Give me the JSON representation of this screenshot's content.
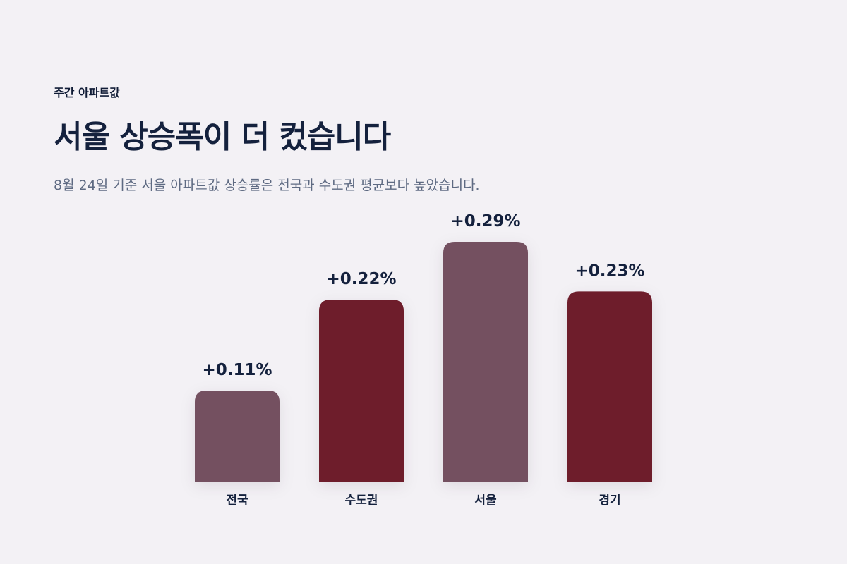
{
  "header": {
    "eyebrow": "주간 아파트값",
    "title": "서울 상승폭이 더 컸습니다",
    "subtitle": "8월 24일 기준 서울 아파트값 상승률은 전국과 수도권 평균보다 높았습니다."
  },
  "chart_data": {
    "type": "bar",
    "categories": [
      "전국",
      "수도권",
      "서울",
      "경기"
    ],
    "values": [
      0.11,
      0.22,
      0.29,
      0.23
    ],
    "value_labels": [
      "+0.11%",
      "+0.22%",
      "+0.29%",
      "+0.23%"
    ],
    "bar_colors": [
      "#745060",
      "#6e1d2b",
      "#745060",
      "#6e1d2b"
    ],
    "ylim": [
      0,
      0.29
    ],
    "grid": false,
    "legend": "none"
  }
}
